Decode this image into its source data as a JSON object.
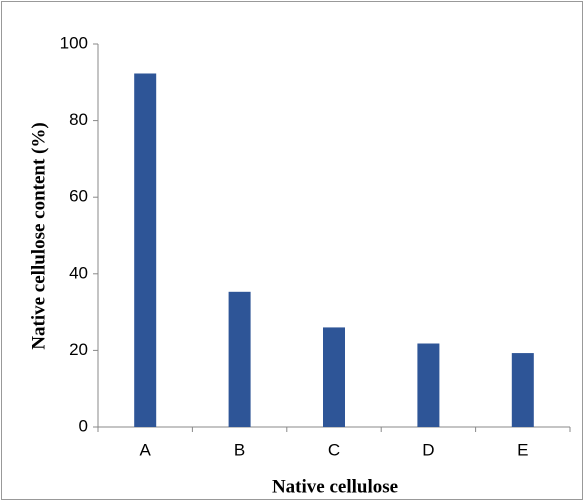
{
  "chart_data": {
    "type": "bar",
    "xlabel": "Native cellulose",
    "ylabel": "Native cellulose content (%)",
    "categories": [
      "A",
      "B",
      "C",
      "D",
      "E"
    ],
    "values": [
      92.3,
      35.3,
      26,
      21.8,
      19.3
    ],
    "color": "#2e5597",
    "ylim": [
      0,
      100
    ],
    "yticks": [
      0,
      20,
      40,
      60,
      80,
      100
    ],
    "grid": false
  }
}
